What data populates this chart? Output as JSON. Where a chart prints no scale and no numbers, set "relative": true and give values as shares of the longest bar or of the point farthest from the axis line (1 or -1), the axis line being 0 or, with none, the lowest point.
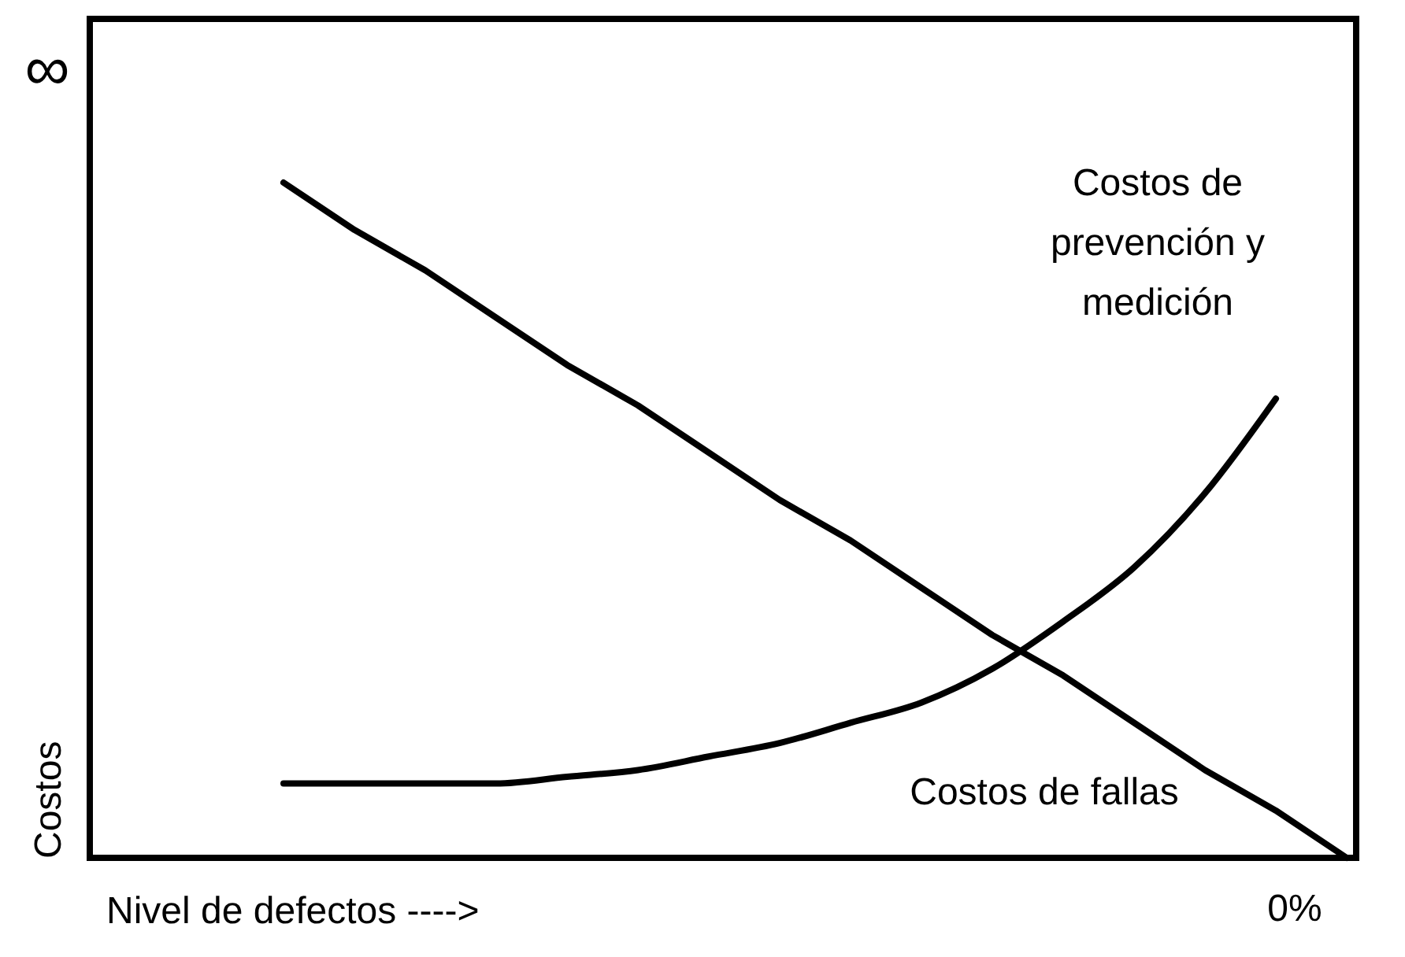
{
  "chart_data": {
    "type": "line",
    "relative": true,
    "xlabel": "Nivel de defectos ---->",
    "ylabel": "Costos",
    "categories": [
      null,
      null,
      null,
      null,
      null,
      null,
      null,
      null,
      null,
      null,
      null,
      null,
      null,
      null,
      null,
      null
    ],
    "series": [
      {
        "name": "Costos de fallas",
        "color": "#000000",
        "values": [
          1,
          0.93,
          0.87,
          0.8,
          0.73,
          0.67,
          0.6,
          0.53,
          0.47,
          0.4,
          0.33,
          0.27,
          0.2,
          0.13,
          0.07,
          0
        ]
      },
      {
        "name": "Costos de prevención y medición",
        "color": "#000000",
        "values": [
          0.11,
          0.11,
          0.11,
          0.11,
          0.12,
          0.13,
          0.15,
          0.17,
          0.2,
          0.23,
          0.28,
          0.35,
          0.43,
          0.54,
          0.68,
          null
        ]
      }
    ],
    "annotations": [
      "∞",
      "0%"
    ],
    "grid": false,
    "marker": "none",
    "line_style": "solid"
  }
}
